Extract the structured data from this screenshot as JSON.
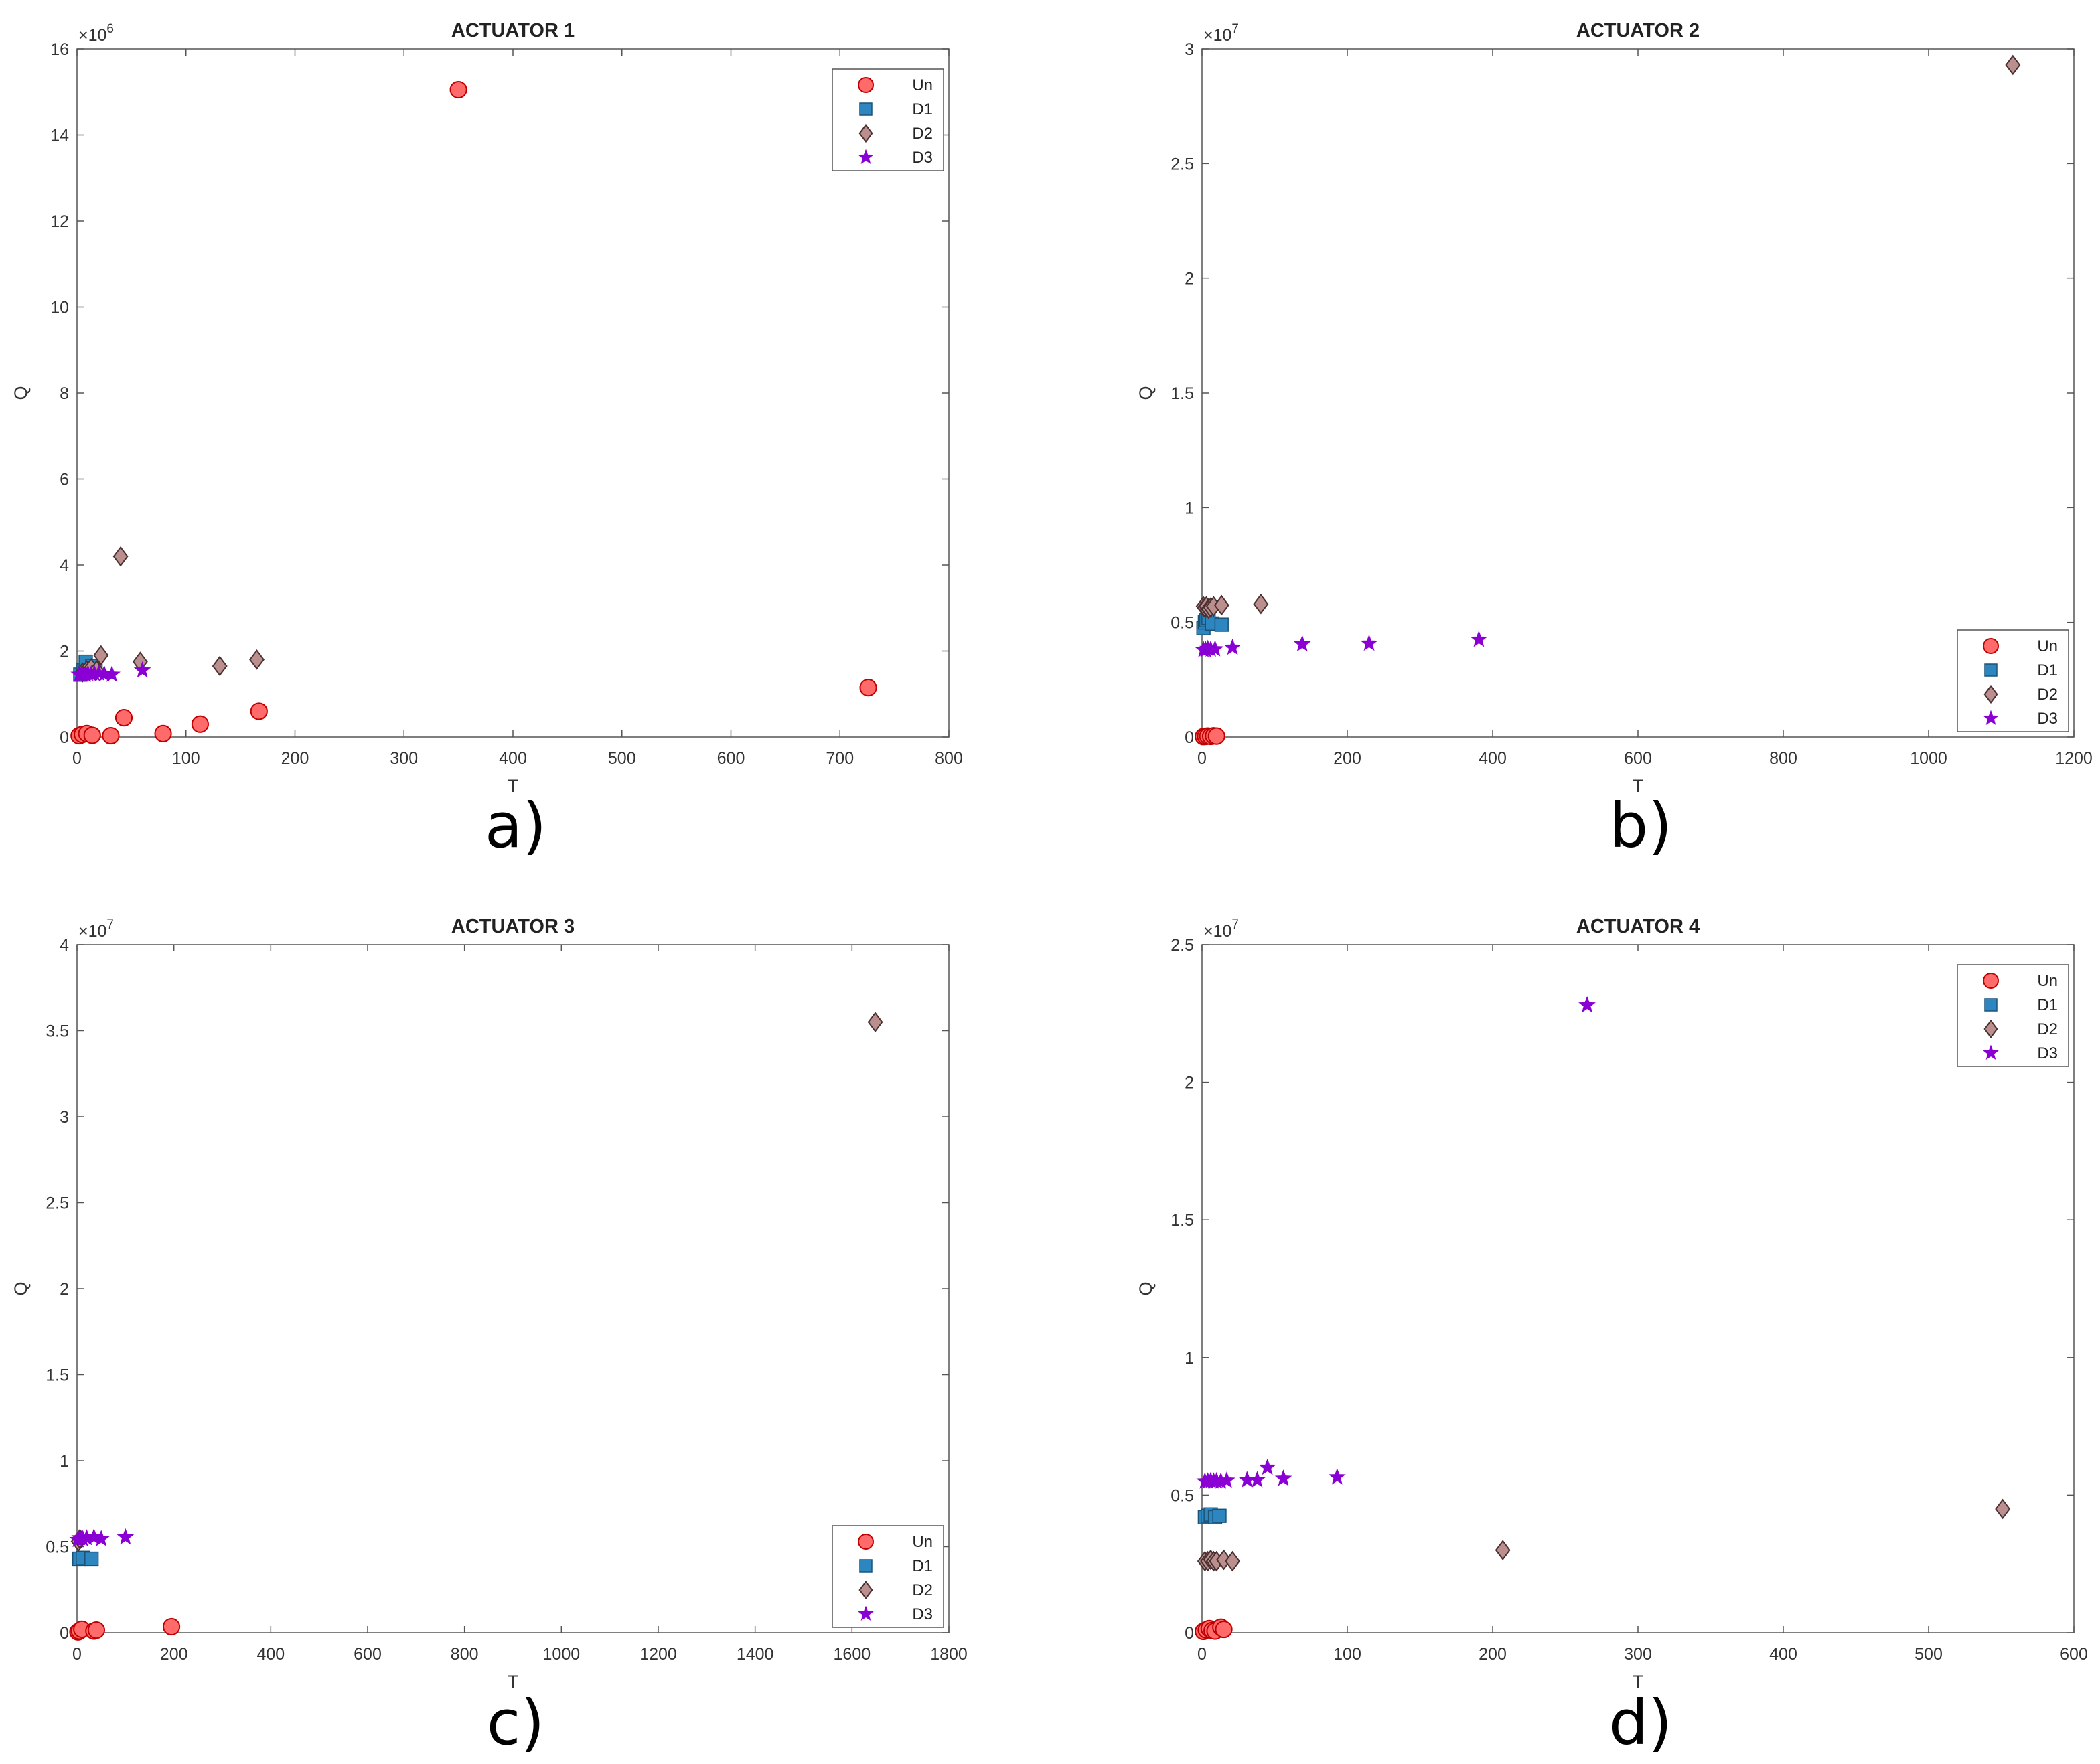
{
  "figure": {
    "panel_letters": [
      "a)",
      "b)",
      "c)",
      "d)"
    ]
  },
  "colors": {
    "Un": "#ff6b6b",
    "Un_edge": "#c00000",
    "D1": "#2e86c1",
    "D1_edge": "#1a5276",
    "D2": "#bc8f8f",
    "D2_edge": "#4a3030",
    "D3": "#8a00d4",
    "D3_edge": "#8a00d4",
    "axis": "#555555"
  },
  "chart_data": [
    {
      "type": "scatter",
      "title": "ACTUATOR 1",
      "xlabel": "T",
      "ylabel": "Q",
      "xlim": [
        0,
        800
      ],
      "ylim": [
        0,
        16000000
      ],
      "xticks": [
        0,
        100,
        200,
        300,
        400,
        500,
        600,
        700,
        800
      ],
      "yticks": [
        0,
        2,
        4,
        6,
        8,
        10,
        12,
        14,
        16
      ],
      "yscale_label": "×10",
      "yscale_exp": "6",
      "legend_position": "top-right",
      "series": [
        {
          "name": "Un",
          "marker": "circle",
          "x": [
            2,
            5,
            9,
            14,
            31,
            43,
            79,
            113,
            167,
            350,
            726
          ],
          "y": [
            30000,
            60000,
            80000,
            40000,
            30000,
            450000,
            80000,
            300000,
            600000,
            15050000,
            1150000
          ]
        },
        {
          "name": "D1",
          "marker": "square",
          "x": [
            3,
            6,
            8,
            11,
            14,
            17
          ],
          "y": [
            1450000,
            1550000,
            1750000,
            1500000,
            1650000,
            1550000
          ]
        },
        {
          "name": "D2",
          "marker": "diamond",
          "x": [
            5,
            9,
            13,
            18,
            22,
            40,
            58,
            131,
            165
          ],
          "y": [
            1500000,
            1550000,
            1600000,
            1550000,
            1900000,
            4200000,
            1750000,
            1650000,
            1800000
          ]
        },
        {
          "name": "D3",
          "marker": "star",
          "x": [
            2,
            4,
            6,
            8,
            10,
            13,
            16,
            20,
            25,
            32,
            60
          ],
          "y": [
            1450000,
            1450000,
            1460000,
            1450000,
            1470000,
            1460000,
            1470000,
            1480000,
            1460000,
            1450000,
            1550000
          ]
        }
      ]
    },
    {
      "type": "scatter",
      "title": "ACTUATOR 2",
      "xlabel": "T",
      "ylabel": "Q",
      "xlim": [
        0,
        1200
      ],
      "ylim": [
        0,
        30000000
      ],
      "xticks": [
        0,
        200,
        400,
        600,
        800,
        1000,
        1200
      ],
      "yticks": [
        0,
        0.5,
        1,
        1.5,
        2,
        2.5,
        3
      ],
      "yscale_label": "×10",
      "yscale_exp": "7",
      "legend_position": "bottom-right",
      "series": [
        {
          "name": "Un",
          "marker": "circle",
          "x": [
            2,
            5,
            8,
            12,
            16,
            20
          ],
          "y": [
            20000,
            30000,
            40000,
            30000,
            50000,
            40000
          ]
        },
        {
          "name": "D1",
          "marker": "square",
          "x": [
            2,
            4,
            6,
            9,
            14,
            27
          ],
          "y": [
            4750000,
            5000000,
            5100000,
            5200000,
            4950000,
            4900000
          ]
        },
        {
          "name": "D2",
          "marker": "diamond",
          "x": [
            2,
            4,
            6,
            9,
            12,
            16,
            27,
            81,
            1116
          ],
          "y": [
            5700000,
            5650000,
            5700000,
            5600000,
            5650000,
            5700000,
            5750000,
            5800000,
            29300000
          ]
        },
        {
          "name": "D3",
          "marker": "star",
          "x": [
            2,
            5,
            8,
            12,
            18,
            42,
            138,
            230,
            381
          ],
          "y": [
            3800000,
            3800000,
            3850000,
            3820000,
            3830000,
            3900000,
            4050000,
            4080000,
            4250000
          ]
        }
      ]
    },
    {
      "type": "scatter",
      "title": "ACTUATOR 3",
      "xlabel": "T",
      "ylabel": "Q",
      "xlim": [
        0,
        1800
      ],
      "ylim": [
        0,
        40000000
      ],
      "xticks": [
        0,
        200,
        400,
        600,
        800,
        1000,
        1200,
        1400,
        1600,
        1800
      ],
      "yticks": [
        0,
        0.5,
        1,
        1.5,
        2,
        2.5,
        3,
        3.5,
        4
      ],
      "yscale_label": "×10",
      "yscale_exp": "7",
      "legend_position": "bottom-right",
      "series": [
        {
          "name": "Un",
          "marker": "circle",
          "x": [
            2,
            5,
            10,
            35,
            40,
            195
          ],
          "y": [
            50000,
            100000,
            200000,
            100000,
            150000,
            350000
          ]
        },
        {
          "name": "D1",
          "marker": "square",
          "x": [
            5,
            12,
            30
          ],
          "y": [
            4300000,
            4350000,
            4300000
          ]
        },
        {
          "name": "D2",
          "marker": "diamond",
          "x": [
            3,
            6,
            1648
          ],
          "y": [
            5300000,
            5450000,
            35500000
          ]
        },
        {
          "name": "D3",
          "marker": "star",
          "x": [
            2,
            6,
            12,
            20,
            35,
            50,
            100
          ],
          "y": [
            5400000,
            5500000,
            5450000,
            5500000,
            5550000,
            5450000,
            5550000
          ]
        }
      ]
    },
    {
      "type": "scatter",
      "title": "ACTUATOR 4",
      "xlabel": "T",
      "ylabel": "Q",
      "xlim": [
        0,
        600
      ],
      "ylim": [
        0,
        25000000
      ],
      "xticks": [
        0,
        100,
        200,
        300,
        400,
        500,
        600
      ],
      "yticks": [
        0,
        0.5,
        1,
        1.5,
        2,
        2.5
      ],
      "yscale_label": "×10",
      "yscale_exp": "7",
      "legend_position": "top-right",
      "series": [
        {
          "name": "Un",
          "marker": "circle",
          "x": [
            1,
            3,
            5,
            7,
            9,
            13,
            15
          ],
          "y": [
            50000,
            100000,
            150000,
            80000,
            60000,
            200000,
            120000
          ]
        },
        {
          "name": "D1",
          "marker": "square",
          "x": [
            2,
            4,
            6,
            9,
            12
          ],
          "y": [
            4200000,
            4250000,
            4300000,
            4200000,
            4250000
          ]
        },
        {
          "name": "D2",
          "marker": "diamond",
          "x": [
            2,
            4,
            6,
            8,
            10,
            15,
            21,
            207,
            551
          ],
          "y": [
            2600000,
            2600000,
            2650000,
            2600000,
            2600000,
            2650000,
            2600000,
            3000000,
            4500000
          ]
        },
        {
          "name": "D3",
          "marker": "star",
          "x": [
            2,
            4,
            6,
            8,
            10,
            13,
            17,
            31,
            38,
            45,
            56,
            93,
            265
          ],
          "y": [
            5500000,
            5500000,
            5520000,
            5500000,
            5510000,
            5500000,
            5530000,
            5550000,
            5550000,
            6000000,
            5600000,
            5650000,
            22800000
          ]
        }
      ]
    }
  ]
}
